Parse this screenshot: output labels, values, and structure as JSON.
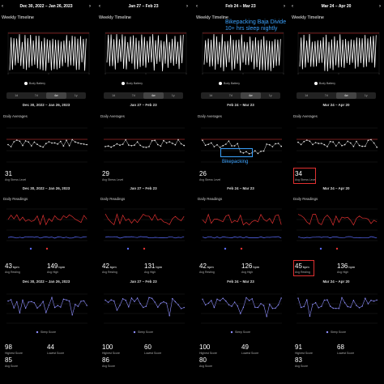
{
  "columns": [
    {
      "header": "Dec 30, 2022 – Jan 26, 2023",
      "timeline_title": "Weekly Timeline",
      "timeline_legend": "Body Battery",
      "tabs": [
        "1d",
        "7d",
        "4w",
        "1y"
      ],
      "range_label": "Dec 30, 2022 – Jan 26, 2023",
      "daily_avg_title": "Daily Averages",
      "stress_value": "31",
      "stress_label": "Avg Stress Level",
      "range_label2": "Dec 30, 2022 – Jan 26, 2023",
      "daily_readings_title": "Daily Readings",
      "resting_value": "43",
      "resting_unit": "bpm",
      "resting_label": "Avg Resting",
      "high_value": "149",
      "high_unit": "bpm",
      "high_label": "Avg High",
      "range_label3": "Dec 30, 2022 – Jan 26, 2023",
      "sleep_legend": "Sleep Score",
      "s1": "98",
      "s1_label": "Highest Score",
      "s2": "44",
      "s2_label": "Lowest Score",
      "s3": "85",
      "s3_label": "Avg Score"
    },
    {
      "header": "Jan 27 – Feb 23",
      "timeline_title": "Weekly Timeline",
      "timeline_legend": "Body Battery",
      "tabs": [
        "1d",
        "7d",
        "4w",
        "1y"
      ],
      "range_label": "Jan 27 – Feb 23",
      "daily_avg_title": "Daily Averages",
      "stress_value": "29",
      "stress_label": "Avg Stress Level",
      "range_label2": "Jan 27 – Feb 23",
      "daily_readings_title": "Daily Readings",
      "resting_value": "42",
      "resting_unit": "bpm",
      "resting_label": "Avg Resting",
      "high_value": "131",
      "high_unit": "bpm",
      "high_label": "Avg High",
      "range_label3": "Jan 27 – Feb 23",
      "sleep_legend": "Sleep Score",
      "s1": "100",
      "s1_label": "Highest Score",
      "s2": "60",
      "s2_label": "Lowest Score",
      "s3": "86",
      "s3_label": "Avg Score"
    },
    {
      "header": "Feb 24 – Mar 23",
      "timeline_title": "Weekly Timeline",
      "timeline_legend": "Body Battery",
      "tabs": [
        "1d",
        "7d",
        "4w",
        "1y"
      ],
      "range_label": "Feb 24 – Mar 23",
      "daily_avg_title": "Daily Averages",
      "stress_value": "26",
      "stress_label": "Avg Stress Level",
      "range_label2": "Feb 24 – Mar 23",
      "daily_readings_title": "Daily Readings",
      "resting_value": "42",
      "resting_unit": "bpm",
      "resting_label": "Avg Resting",
      "high_value": "126",
      "high_unit": "bpm",
      "high_label": "Avg High",
      "range_label3": "Feb 24 – Mar 23",
      "sleep_legend": "Sleep Score",
      "s1": "100",
      "s1_label": "Highest Score",
      "s2": "49",
      "s2_label": "Lowest Score",
      "s3": "80",
      "s3_label": "Avg Score",
      "annotation_line1": "Bikepacking Baja Divide",
      "annotation_line2": "10+ hrs sleep nightly",
      "annotation_bike": "Bikepacking"
    },
    {
      "header": "Mar 24 – Apr 20",
      "timeline_title": "Weekly Timeline",
      "timeline_legend": "Body Battery",
      "tabs": [
        "1d",
        "7d",
        "4w",
        "1y"
      ],
      "range_label": "Mar 24 – Apr 20",
      "daily_avg_title": "Daily Averages",
      "stress_value": "34",
      "stress_label": "Avg Stress Level",
      "range_label2": "Mar 24 – Apr 20",
      "daily_readings_title": "Daily Readings",
      "resting_value": "45",
      "resting_unit": "bpm",
      "resting_label": "Avg Resting",
      "high_value": "136",
      "high_unit": "bpm",
      "high_label": "Avg High",
      "range_label3": "Mar 24 – Apr 20",
      "sleep_legend": "Sleep Score",
      "s1": "91",
      "s1_label": "Highest Score",
      "s2": "68",
      "s2_label": "Lowest Score",
      "s3": "83",
      "s3_label": "Avg Score"
    }
  ],
  "colors": {
    "stress_line": "#e0e0e0",
    "stress_ref": "#e03030",
    "high_line": "#e03030",
    "resting_line": "#5b6cff",
    "sleep_line": "#8f8fff",
    "annotation": "#3ba3ff"
  }
}
